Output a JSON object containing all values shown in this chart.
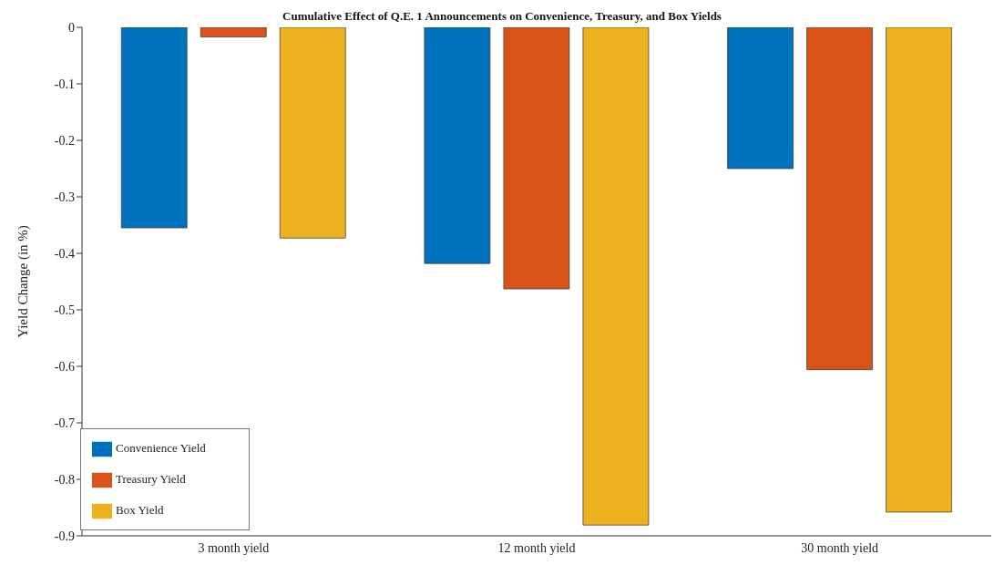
{
  "chart_data": {
    "type": "bar",
    "title": "Cumulative Effect of Q.E. 1 Announcements on Convenience, Treasury, and Box Yields",
    "ylabel": "Yield Change (in %)",
    "categories": [
      "3 month yield",
      "12 month yield",
      "30 month yield"
    ],
    "series": [
      {
        "name": "Convenience Yield",
        "color": "#0072bd",
        "values": [
          -0.355,
          -0.418,
          -0.25
        ]
      },
      {
        "name": "Treasury Yield",
        "color": "#d95319",
        "values": [
          -0.017,
          -0.463,
          -0.606
        ]
      },
      {
        "name": "Box Yield",
        "color": "#edb120",
        "values": [
          -0.373,
          -0.881,
          -0.858
        ]
      }
    ],
    "ylim": [
      -0.9,
      0
    ],
    "yticks": [
      0,
      -0.1,
      -0.2,
      -0.3,
      -0.4,
      -0.5,
      -0.6,
      -0.7,
      -0.8,
      -0.9
    ],
    "grid": false,
    "legend": "bottom left"
  }
}
